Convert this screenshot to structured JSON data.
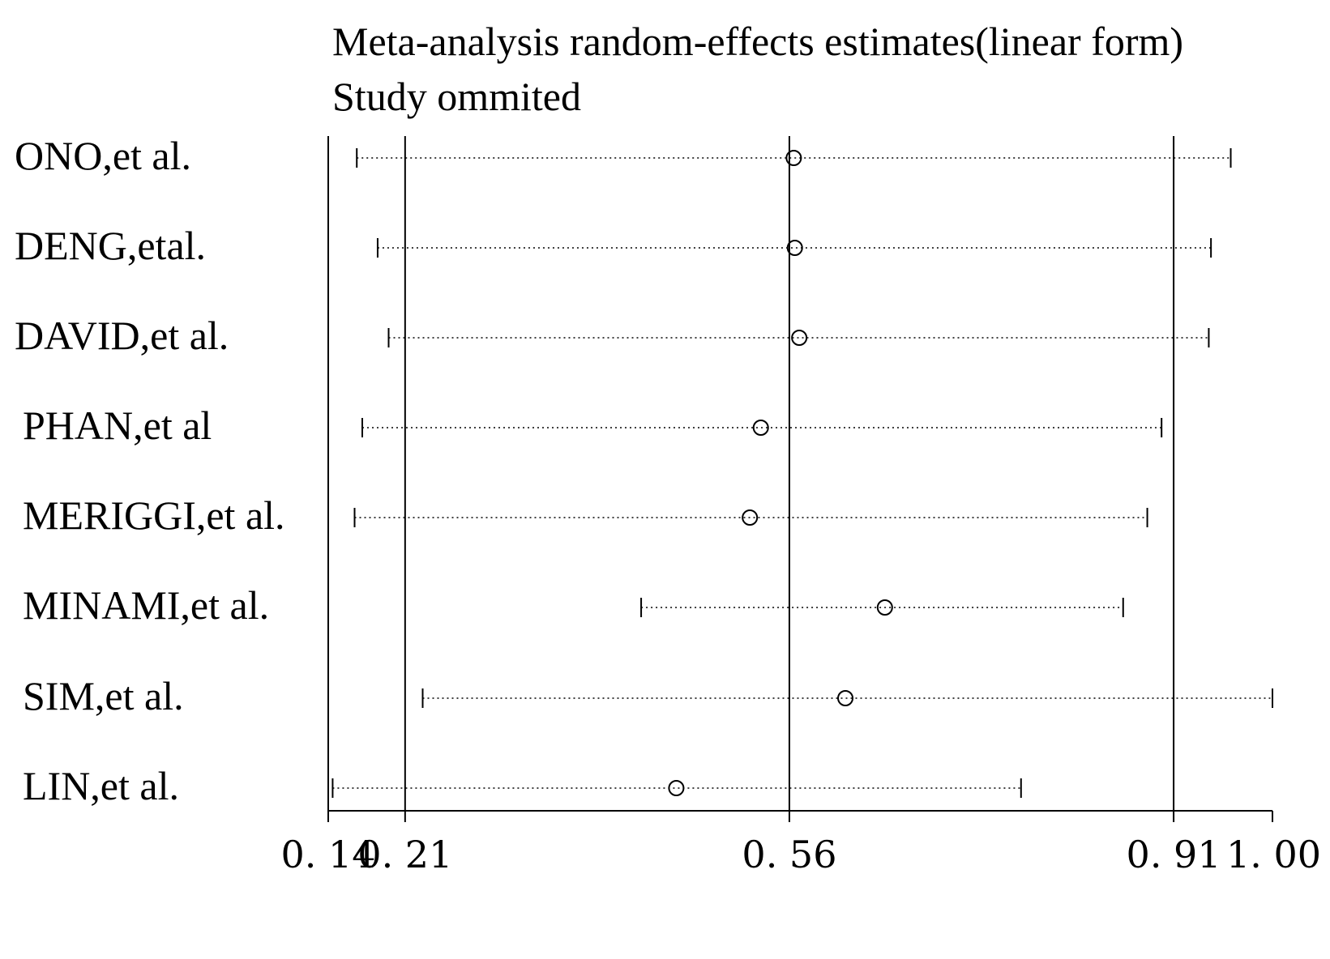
{
  "chart_data": {
    "type": "forest",
    "title_line1": "Meta-analysis random-effects estimates(linear form)",
    "title_line2": "Study ommited",
    "x_ticks": [
      0.14,
      0.21,
      0.56,
      0.91,
      1.0
    ],
    "x_tick_labels": [
      "0. 14",
      "0. 21",
      "0. 56",
      "0. 91",
      "1. 00"
    ],
    "reference_lines": [
      0.21,
      0.56,
      0.91
    ],
    "xlim": [
      0.14,
      1.0
    ],
    "studies": [
      {
        "label": "ONO,et al.",
        "estimate": 0.564,
        "lower": 0.166,
        "upper": 0.962
      },
      {
        "label": "DENG,etal.",
        "estimate": 0.565,
        "lower": 0.185,
        "upper": 0.944
      },
      {
        "label": "DAVID,et al.",
        "estimate": 0.569,
        "lower": 0.195,
        "upper": 0.942
      },
      {
        "label": "PHAN,et al",
        "estimate": 0.534,
        "lower": 0.171,
        "upper": 0.899
      },
      {
        "label": "MERIGGI,et al.",
        "estimate": 0.524,
        "lower": 0.164,
        "upper": 0.886
      },
      {
        "label": "MINAMI,et al.",
        "estimate": 0.647,
        "lower": 0.425,
        "upper": 0.864
      },
      {
        "label": "SIM,et al.",
        "estimate": 0.611,
        "lower": 0.226,
        "upper": 1.0
      },
      {
        "label": "LIN,et al.",
        "estimate": 0.457,
        "lower": 0.144,
        "upper": 0.771
      }
    ]
  }
}
